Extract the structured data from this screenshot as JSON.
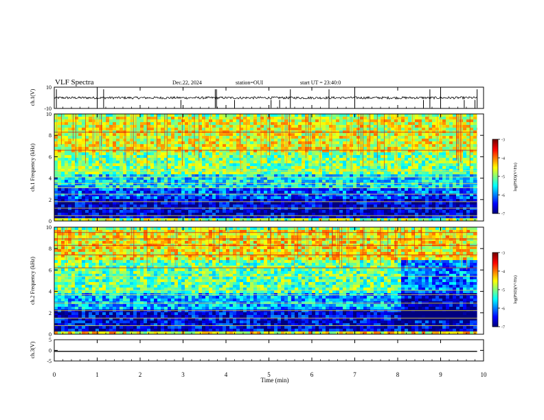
{
  "header": {
    "title": "VLF Spectra",
    "date": "Dec.22, 2024",
    "station": "station=OUI",
    "start": "start UT =  23:40:0"
  },
  "chart_data": [
    {
      "type": "line",
      "panel": "ch1-waveform",
      "ylabel": "ch.1(V)",
      "ylim": [
        -10,
        10
      ],
      "y_ticks": [
        "10",
        "-10"
      ],
      "baseline_value": 0,
      "spikes_at_min": [
        0.05,
        1.0,
        1.15,
        2.95,
        3.75,
        3.78,
        4.2,
        5.05,
        5.25,
        5.5,
        6.4,
        7.0,
        8.6,
        8.75,
        9.0,
        9.55,
        9.8,
        9.85
      ]
    },
    {
      "type": "heatmap",
      "panel": "ch1-spectrogram",
      "ylabel": "ch.1 Frequency (kHz)",
      "ylim": [
        0,
        10
      ],
      "y_ticks": [
        "0",
        "2",
        "4",
        "6",
        "8",
        "10"
      ],
      "colorbar": {
        "label": "log(PSD)(V²/Hz)",
        "range": [
          -7,
          -3
        ],
        "ticks": [
          "-3",
          "-4",
          "-5",
          "-6",
          "-7"
        ]
      },
      "x_extent_min": [
        0,
        9.85
      ],
      "bands_kHz": [
        {
          "from": 0,
          "to": 0.4,
          "level": -4.8
        },
        {
          "from": 0.4,
          "to": 2.2,
          "level": -6.7
        },
        {
          "from": 2.2,
          "to": 3.2,
          "level": -6.2
        },
        {
          "from": 3.2,
          "to": 4.5,
          "level": -5.6
        },
        {
          "from": 4.5,
          "to": 6.5,
          "level": -5.0
        },
        {
          "from": 6.5,
          "to": 10,
          "level": -4.6
        }
      ],
      "emission_lines_kHz": [
        0.5,
        1.2,
        1.8,
        2.5,
        3.1,
        3.5,
        4.1,
        4.7,
        6.6,
        8.3
      ]
    },
    {
      "type": "heatmap",
      "panel": "ch2-spectrogram",
      "ylabel": "ch.2 Frequency (kHz)",
      "ylim": [
        0,
        10
      ],
      "y_ticks": [
        "0",
        "2",
        "4",
        "6",
        "8",
        "10"
      ],
      "colorbar": {
        "label": "log(PSD)(V²/Hz)",
        "range": [
          -7,
          -3
        ],
        "ticks": [
          "-3",
          "-4",
          "-5",
          "-6",
          "-7"
        ]
      },
      "x_extent_min": [
        0,
        9.85
      ],
      "bands_kHz": [
        {
          "from": 0,
          "to": 0.4,
          "level": -4.5
        },
        {
          "from": 0.4,
          "to": 2.4,
          "level": -6.6
        },
        {
          "from": 2.4,
          "to": 4.0,
          "level": -5.8
        },
        {
          "from": 4.0,
          "to": 7.0,
          "level": -5.1
        },
        {
          "from": 7.0,
          "to": 10,
          "level": -4.5
        }
      ],
      "emission_lines_kHz": [
        0.8,
        1.5,
        2.2,
        2.9,
        3.7,
        4.1,
        5.4,
        6.2,
        7.4,
        8.3,
        8.9,
        9.5
      ]
    },
    {
      "type": "line",
      "panel": "ch3-waveform",
      "ylabel": "ch.3(V)",
      "ylim": [
        -5,
        5
      ],
      "y_ticks": [
        "5",
        "0",
        "-5"
      ],
      "constant_value": -0.5
    }
  ],
  "x_axis": {
    "label": "Time (min)",
    "xlim": [
      0,
      10
    ],
    "ticks": [
      "0",
      "1",
      "2",
      "3",
      "4",
      "5",
      "6",
      "7",
      "8",
      "9",
      "10"
    ]
  }
}
